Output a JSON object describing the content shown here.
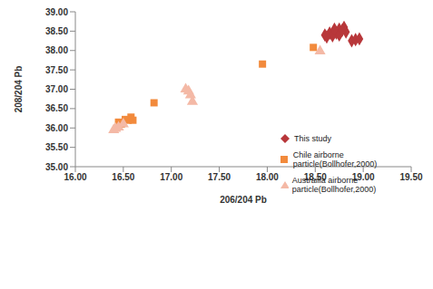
{
  "chart_data": {
    "type": "scatter",
    "x_label": "206/204 Pb",
    "y_label": "208/204 Pb",
    "xlim": [
      16,
      19.5
    ],
    "xticks": [
      {
        "value": 16,
        "label": "16.00"
      },
      {
        "value": 16.5,
        "label": "16.50"
      },
      {
        "value": 17,
        "label": "17.00"
      },
      {
        "value": 17.5,
        "label": "17.50"
      },
      {
        "value": 18,
        "label": "18.00"
      },
      {
        "value": 18.5,
        "label": "18.50"
      },
      {
        "value": 19,
        "label": "19.00"
      },
      {
        "value": 19.5,
        "label": "19.50"
      }
    ],
    "ylim": [
      35,
      39
    ],
    "yticks": [
      {
        "value": 35,
        "label": "35.00"
      },
      {
        "value": 35.5,
        "label": "35.50"
      },
      {
        "value": 36,
        "label": "36.00"
      },
      {
        "value": 36.5,
        "label": "36.50"
      },
      {
        "value": 37,
        "label": "37.00"
      },
      {
        "value": 37.5,
        "label": "37.50"
      },
      {
        "value": 38,
        "label": "38.00"
      },
      {
        "value": 38.5,
        "label": "38.50"
      },
      {
        "value": 39,
        "label": "39.00"
      }
    ],
    "grid": false,
    "legend": "right",
    "series": [
      {
        "name": "This study",
        "color": "#b8373a",
        "marker": "diamond",
        "x": [
          18.8,
          18.75,
          18.7,
          18.72,
          18.65,
          18.6,
          18.68,
          18.75,
          18.82,
          18.7,
          18.88,
          18.92,
          18.96,
          18.62,
          18.78
        ],
        "values": [
          38.6,
          38.55,
          38.5,
          38.45,
          38.45,
          38.4,
          38.38,
          38.4,
          38.48,
          38.55,
          38.25,
          38.28,
          38.3,
          38.35,
          38.52
        ]
      },
      {
        "name": "Chile airborne particle(Bollhofer,2000)",
        "color": "#f28a3c",
        "marker": "square",
        "x": [
          16.45,
          16.48,
          16.55,
          16.58,
          16.6,
          16.52,
          16.82,
          17.95,
          18.48
        ],
        "values": [
          36.15,
          36.1,
          36.2,
          36.28,
          36.2,
          36.22,
          36.65,
          37.65,
          38.08
        ]
      },
      {
        "name": "Austrailia airborne particle(Bollhofer,2000)",
        "color": "#f4b9a6",
        "marker": "triangle",
        "x": [
          16.4,
          16.42,
          16.45,
          16.5,
          17.15,
          17.18,
          17.2,
          17.22,
          18.55
        ],
        "values": [
          35.95,
          35.98,
          36.02,
          36.1,
          37.0,
          36.95,
          36.85,
          36.68,
          37.98
        ]
      }
    ]
  }
}
